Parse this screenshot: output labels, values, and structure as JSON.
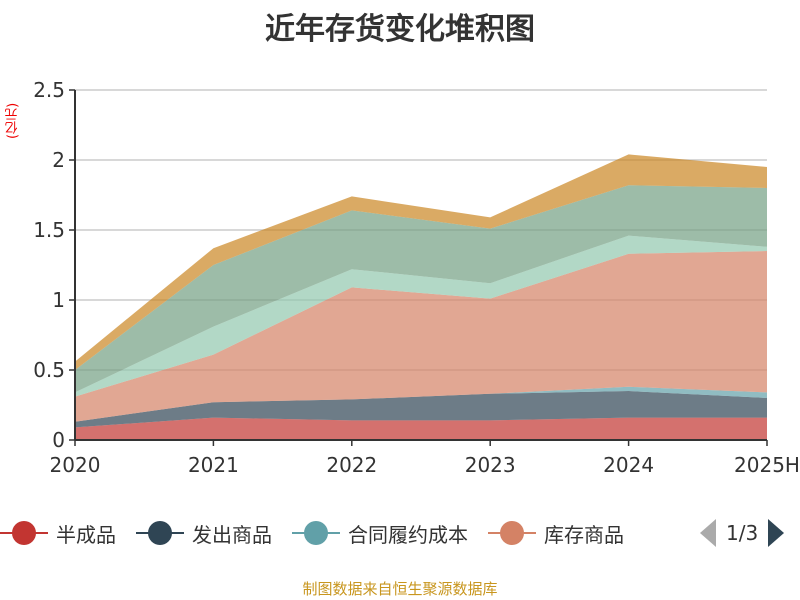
{
  "chart_data": {
    "type": "area",
    "stacked": true,
    "title": "近年存货变化堆积图",
    "ylabel": "(亿元)",
    "xlabel": "",
    "categories": [
      "2020",
      "2021",
      "2022",
      "2023",
      "2024",
      "2025H"
    ],
    "ylim": [
      0,
      2.5
    ],
    "yticks": [
      "0",
      "0.5",
      "1",
      "1.5",
      "2",
      "2.5"
    ],
    "grid": true,
    "legend_position": "bottom",
    "legend_page": "1/3",
    "series": [
      {
        "name": "半成品",
        "color": "#c23531",
        "values": [
          0.09,
          0.16,
          0.14,
          0.14,
          0.16,
          0.16
        ]
      },
      {
        "name": "发出商品",
        "color": "#2f4554",
        "values": [
          0.04,
          0.11,
          0.15,
          0.19,
          0.19,
          0.14
        ]
      },
      {
        "name": "合同履约成本",
        "color": "#61a0a8",
        "values": [
          0,
          0,
          0,
          0,
          0.03,
          0.04
        ]
      },
      {
        "name": "库存商品",
        "color": "#d48265",
        "values": [
          0.18,
          0.34,
          0.8,
          0.68,
          0.95,
          1.01
        ]
      },
      {
        "color": "#91c7ae",
        "values": [
          0.03,
          0.2,
          0.13,
          0.11,
          0.13,
          0.03
        ]
      },
      {
        "color": "#749f83",
        "values": [
          0.16,
          0.44,
          0.42,
          0.39,
          0.36,
          0.42
        ]
      },
      {
        "color": "#ca8622",
        "values": [
          0.06,
          0.12,
          0.1,
          0.08,
          0.22,
          0.15
        ]
      }
    ]
  },
  "source": "制图数据来自恒生聚源数据库"
}
